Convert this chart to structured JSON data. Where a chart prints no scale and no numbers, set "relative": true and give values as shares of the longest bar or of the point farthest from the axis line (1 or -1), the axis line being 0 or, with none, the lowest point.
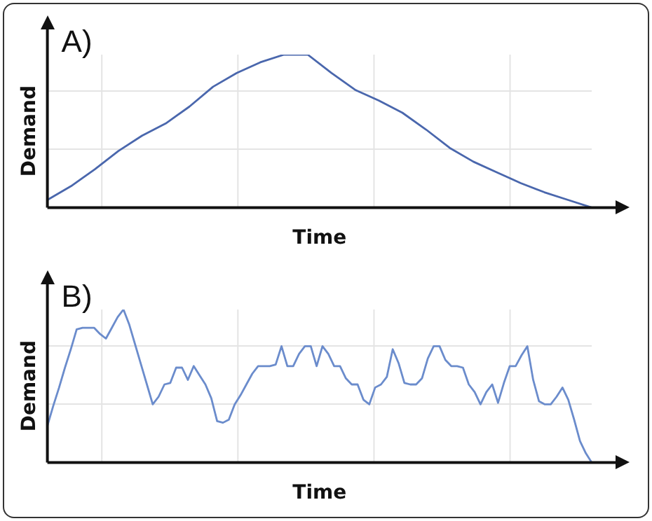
{
  "chart_data": [
    {
      "type": "line",
      "title": "A)",
      "xlabel": "Time",
      "ylabel": "Demand",
      "relative": true,
      "grid": true,
      "legend": false,
      "marker": "none",
      "categories": [
        null,
        null,
        null,
        null,
        null,
        null,
        null,
        null,
        null,
        null,
        null,
        null,
        null,
        null,
        null,
        null,
        null,
        null,
        null,
        null,
        null,
        null,
        null,
        null
      ],
      "series": [
        {
          "color": "#4a67ad",
          "values": [
            0.05,
            0.14,
            0.25,
            0.37,
            0.47,
            0.55,
            0.66,
            0.79,
            0.88,
            0.95,
            1,
            1,
            0.88,
            0.77,
            0.7,
            0.62,
            0.51,
            0.39,
            0.3,
            0.23,
            0.16,
            0.1,
            0.05,
            0
          ]
        }
      ]
    },
    {
      "type": "line",
      "title": "B)",
      "xlabel": "Time",
      "ylabel": "Demand",
      "relative": true,
      "grid": true,
      "legend": false,
      "marker": "none",
      "categories": [
        null,
        null,
        null,
        null,
        null,
        null,
        null,
        null,
        null,
        null,
        null,
        null,
        null,
        null,
        null,
        null,
        null,
        null,
        null,
        null,
        null,
        null,
        null,
        null,
        null,
        null,
        null,
        null,
        null,
        null,
        null,
        null,
        null,
        null,
        null,
        null,
        null,
        null,
        null,
        null,
        null,
        null,
        null,
        null,
        null,
        null,
        null,
        null,
        null,
        null,
        null,
        null,
        null,
        null,
        null,
        null,
        null,
        null,
        null,
        null,
        null,
        null,
        null,
        null,
        null,
        null,
        null,
        null,
        null,
        null,
        null,
        null,
        null,
        null,
        null,
        null,
        null,
        null,
        null,
        null,
        null,
        null,
        null,
        null,
        null,
        null,
        null,
        null,
        null,
        null,
        null,
        null,
        null,
        null
      ],
      "series": [
        {
          "color": "#6b8ccc",
          "values": [
            0.24,
            0.37,
            0.49,
            0.62,
            0.74,
            0.87,
            0.88,
            0.88,
            0.88,
            0.84,
            0.81,
            0.88,
            0.95,
            1,
            0.9,
            0.77,
            0.64,
            0.51,
            0.38,
            0.43,
            0.51,
            0.52,
            0.62,
            0.62,
            0.54,
            0.63,
            0.57,
            0.51,
            0.42,
            0.27,
            0.26,
            0.28,
            0.38,
            0.44,
            0.51,
            0.58,
            0.63,
            0.63,
            0.63,
            0.64,
            0.76,
            0.63,
            0.63,
            0.71,
            0.76,
            0.76,
            0.63,
            0.76,
            0.71,
            0.63,
            0.63,
            0.55,
            0.51,
            0.51,
            0.41,
            0.38,
            0.49,
            0.51,
            0.56,
            0.74,
            0.65,
            0.52,
            0.51,
            0.51,
            0.55,
            0.68,
            0.76,
            0.76,
            0.67,
            0.63,
            0.63,
            0.62,
            0.51,
            0.46,
            0.38,
            0.46,
            0.51,
            0.39,
            0.52,
            0.63,
            0.63,
            0.7,
            0.76,
            0.54,
            0.4,
            0.38,
            0.38,
            0.43,
            0.49,
            0.41,
            0.28,
            0.14,
            0.06,
            0
          ]
        }
      ]
    }
  ]
}
